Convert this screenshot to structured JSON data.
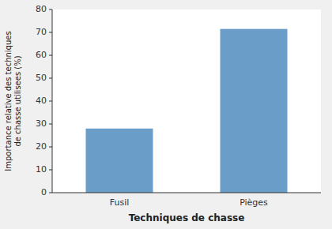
{
  "chart_data": {
    "type": "bar",
    "categories": [
      "Fusil",
      "Pièges"
    ],
    "values": [
      28,
      71.5
    ],
    "color": "#6b9dc9",
    "xlabel": "Techniques de chasse",
    "ylabel": "Importance relative des techniques\nde chasse utilisees (%)",
    "ylim": [
      0,
      80
    ],
    "yticks": [
      0,
      10,
      20,
      30,
      40,
      50,
      60,
      70,
      80
    ]
  }
}
